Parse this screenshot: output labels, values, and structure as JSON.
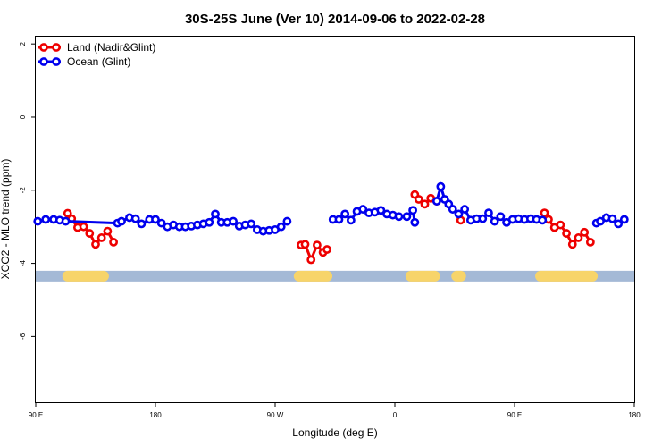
{
  "chart_data": {
    "type": "line",
    "title": "30S-25S June (Ver 10)   2014-09-06 to 2022-02-28",
    "xlabel": "Longitude (deg E)",
    "ylabel": "XCO2 - MLO trend (ppm)",
    "xlim": [
      90,
      390
    ],
    "ylim": [
      -7.8,
      2.2
    ],
    "x_ticks": [
      {
        "value": 90,
        "label": "90 E"
      },
      {
        "value": 150,
        "label": "180"
      },
      {
        "value": 210,
        "label": "90 W"
      },
      {
        "value": 270,
        "label": "0"
      },
      {
        "value": 330,
        "label": "90 E"
      },
      {
        "value": 390,
        "label": "180"
      }
    ],
    "y_ticks": [
      {
        "value": 2,
        "label": "2"
      },
      {
        "value": 0,
        "label": "0"
      },
      {
        "value": -2,
        "label": "-2"
      },
      {
        "value": -4,
        "label": "-4"
      },
      {
        "value": -6,
        "label": "-6"
      }
    ],
    "legend_position": "top-left",
    "series": [
      {
        "name": "Land (Nadir&Glint)",
        "color": "#ee0000",
        "segments": [
          [
            [
              106,
              -2.63
            ],
            [
              108,
              -2.78
            ],
            [
              111,
              -3.02
            ],
            [
              114,
              -3.0
            ],
            [
              117,
              -3.18
            ],
            [
              120,
              -3.48
            ],
            [
              123,
              -3.3
            ],
            [
              126,
              -3.12
            ],
            [
              129,
              -3.42
            ]
          ],
          [
            [
              223,
              -3.5
            ],
            [
              225,
              -3.48
            ],
            [
              228,
              -3.9
            ],
            [
              231,
              -3.5
            ],
            [
              234,
              -3.7
            ],
            [
              236,
              -3.62
            ]
          ],
          [
            [
              280,
              -2.12
            ],
            [
              282,
              -2.25
            ],
            [
              285,
              -2.38
            ],
            [
              288,
              -2.22
            ],
            [
              291,
              -2.3
            ]
          ],
          [
            [
              303,
              -2.82
            ]
          ],
          [
            [
              345,
              -2.62
            ],
            [
              347,
              -2.8
            ],
            [
              350,
              -3.02
            ],
            [
              353,
              -2.95
            ],
            [
              356,
              -3.18
            ],
            [
              359,
              -3.48
            ],
            [
              362,
              -3.3
            ],
            [
              365,
              -3.15
            ],
            [
              368,
              -3.42
            ]
          ]
        ]
      },
      {
        "name": "Ocean (Glint)",
        "color": "#0000ee",
        "segments": [
          [
            [
              91,
              -2.85
            ],
            [
              95,
              -2.8
            ],
            [
              99,
              -2.8
            ],
            [
              102,
              -2.82
            ],
            [
              105,
              -2.85
            ],
            [
              131,
              -2.9
            ],
            [
              133,
              -2.85
            ],
            [
              137,
              -2.75
            ],
            [
              140,
              -2.78
            ],
            [
              143,
              -2.92
            ],
            [
              147,
              -2.8
            ],
            [
              150,
              -2.8
            ],
            [
              153,
              -2.9
            ],
            [
              156,
              -3.0
            ],
            [
              159,
              -2.95
            ],
            [
              162,
              -3.0
            ],
            [
              165,
              -3.0
            ],
            [
              168,
              -2.98
            ],
            [
              171,
              -2.95
            ],
            [
              174,
              -2.92
            ],
            [
              177,
              -2.88
            ],
            [
              180,
              -2.65
            ],
            [
              183,
              -2.88
            ],
            [
              186,
              -2.88
            ],
            [
              189,
              -2.85
            ],
            [
              192,
              -2.98
            ],
            [
              195,
              -2.95
            ],
            [
              198,
              -2.92
            ],
            [
              201,
              -3.08
            ],
            [
              204,
              -3.12
            ],
            [
              207,
              -3.1
            ],
            [
              210,
              -3.08
            ],
            [
              213,
              -3.0
            ],
            [
              216,
              -2.85
            ]
          ],
          [
            [
              239,
              -2.8
            ],
            [
              242,
              -2.8
            ],
            [
              245,
              -2.65
            ],
            [
              248,
              -2.82
            ],
            [
              251,
              -2.58
            ],
            [
              254,
              -2.52
            ],
            [
              257,
              -2.62
            ],
            [
              260,
              -2.6
            ],
            [
              263,
              -2.55
            ],
            [
              266,
              -2.65
            ],
            [
              269,
              -2.68
            ],
            [
              272,
              -2.72
            ],
            [
              276,
              -2.72
            ],
            [
              279,
              -2.55
            ],
            [
              280,
              -2.88
            ]
          ],
          [
            [
              291,
              -2.3
            ],
            [
              293,
              -1.9
            ],
            [
              295,
              -2.25
            ],
            [
              297,
              -2.38
            ],
            [
              299,
              -2.52
            ],
            [
              302,
              -2.65
            ],
            [
              305,
              -2.52
            ],
            [
              308,
              -2.82
            ],
            [
              311,
              -2.78
            ],
            [
              314,
              -2.78
            ],
            [
              317,
              -2.62
            ],
            [
              320,
              -2.85
            ],
            [
              323,
              -2.72
            ],
            [
              326,
              -2.88
            ],
            [
              329,
              -2.8
            ],
            [
              332,
              -2.78
            ],
            [
              335,
              -2.8
            ],
            [
              338,
              -2.78
            ],
            [
              341,
              -2.8
            ],
            [
              344,
              -2.82
            ]
          ],
          [
            [
              371,
              -2.9
            ],
            [
              373,
              -2.85
            ],
            [
              376,
              -2.75
            ],
            [
              379,
              -2.78
            ],
            [
              382,
              -2.92
            ],
            [
              385,
              -2.8
            ]
          ]
        ]
      }
    ],
    "land_mask_band": {
      "y": -4.35,
      "ocean_color": "#a4b9d6",
      "land_color": "#f7d46a",
      "land_spans": [
        [
          106,
          124
        ],
        [
          222,
          236
        ],
        [
          278,
          290
        ],
        [
          301,
          303
        ],
        [
          343,
          369
        ]
      ]
    }
  }
}
